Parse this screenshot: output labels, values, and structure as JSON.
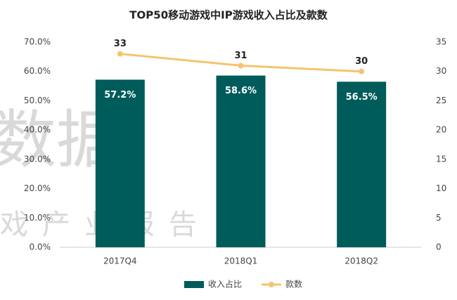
{
  "chart_data": {
    "type": "bar-line",
    "title": "TOP50移动游戏中IP游戏收入占比及款数",
    "categories": [
      "2017Q4",
      "2018Q1",
      "2018Q2"
    ],
    "series": [
      {
        "name": "收入占比",
        "type": "bar",
        "color": "#005b5b",
        "values": [
          57.2,
          58.6,
          56.5
        ],
        "value_labels": [
          "57.2%",
          "58.6%",
          "56.5%"
        ]
      },
      {
        "name": "款数",
        "type": "line",
        "axis": "y2",
        "color": "#f5c46e",
        "values": [
          33,
          31,
          30
        ]
      }
    ],
    "ylim": [
      0,
      70
    ],
    "yticks": [
      {
        "value": 0,
        "label": "0.0%"
      },
      {
        "value": 10,
        "label": "10.0%"
      },
      {
        "value": 20,
        "label": "20.0%"
      },
      {
        "value": 30,
        "label": "30.0%"
      },
      {
        "value": 40,
        "label": "40.0%"
      },
      {
        "value": 50,
        "label": "50.0%"
      },
      {
        "value": 60,
        "label": "60.0%"
      },
      {
        "value": 70,
        "label": "70.0%"
      }
    ],
    "y2lim": [
      0,
      35
    ],
    "y2ticks": [
      0,
      5,
      10,
      15,
      20,
      25,
      30,
      35
    ],
    "watermark": [
      "数据",
      "戏产业报告"
    ],
    "legend": "bottom"
  }
}
